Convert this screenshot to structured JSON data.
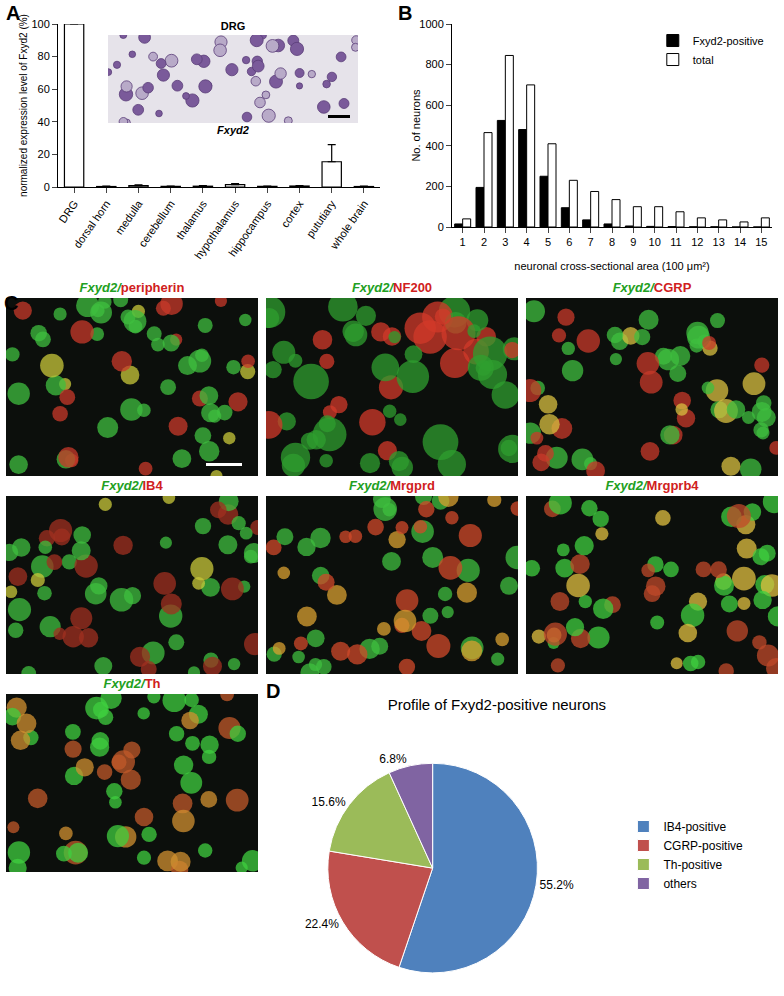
{
  "chart_data": [
    {
      "panel": "A",
      "type": "bar",
      "categories": [
        "DRG",
        "dorsal horn",
        "medulla",
        "cerebellum",
        "thalamus",
        "hypothalamus",
        "hippocampus",
        "cortex",
        "pututiary",
        "whole brain"
      ],
      "values": [
        100,
        0.3,
        0.8,
        0.4,
        0.5,
        1.5,
        0.4,
        0.6,
        15.5,
        0.3
      ],
      "errors": [
        0,
        0.2,
        0.5,
        0.2,
        0.3,
        0.6,
        0.2,
        0.3,
        10.5,
        0.2
      ],
      "color": "#ffffff",
      "ylabel": "normalized expression level of Fxyd2 (%)",
      "ylim": [
        0,
        100
      ],
      "yticks": [
        0,
        20,
        40,
        60,
        80,
        100
      ],
      "inset_title": "DRG",
      "inset_caption": "Fxyd2"
    },
    {
      "panel": "B",
      "type": "bar",
      "x": [
        1,
        2,
        3,
        4,
        5,
        6,
        7,
        8,
        9,
        10,
        11,
        12,
        13,
        14,
        15
      ],
      "series": [
        {
          "name": "Fxyd2-positive",
          "color": "#000000",
          "values": [
            15,
            195,
            525,
            480,
            250,
            95,
            35,
            15,
            5,
            3,
            2,
            1,
            1,
            0,
            0
          ]
        },
        {
          "name": "total",
          "color": "#ffffff",
          "values": [
            40,
            465,
            845,
            700,
            410,
            230,
            175,
            135,
            100,
            100,
            75,
            45,
            35,
            25,
            45
          ]
        }
      ],
      "xlabel": "neuronal cross-sectional area (100 μm²)",
      "ylabel": "No. of neurons",
      "xlim": [
        0.5,
        15.5
      ],
      "xticks": [
        1,
        2,
        3,
        4,
        5,
        6,
        7,
        8,
        9,
        10,
        11,
        12,
        13,
        14,
        15
      ],
      "ylim": [
        0,
        1000
      ],
      "yticks": [
        0,
        200,
        400,
        600,
        800,
        1000
      ],
      "legend": "top right"
    },
    {
      "panel": "D",
      "type": "pie",
      "title": "Profile of Fxyd2-positive neurons",
      "categories": [
        "IB4-positive",
        "CGRP-positive",
        "Th-positive",
        "others"
      ],
      "values": [
        55.2,
        22.4,
        15.6,
        6.8
      ],
      "value_labels": [
        "55.2%",
        "22.4%",
        "15.6%",
        "6.8%"
      ],
      "colors": [
        "#4f81bd",
        "#c0504d",
        "#9bbb59",
        "#8064a2"
      ],
      "data_labels": true,
      "legend": "right"
    }
  ],
  "image_panels": {
    "panel": "C",
    "items": [
      "Fxyd2/peripherin",
      "Fxyd2/NF200",
      "Fxyd2/CGRP",
      "Fxyd2/IB4",
      "Fxyd2/Mrgprd",
      "Fxyd2/Mrgprb4",
      "Fxyd2/Th"
    ]
  }
}
